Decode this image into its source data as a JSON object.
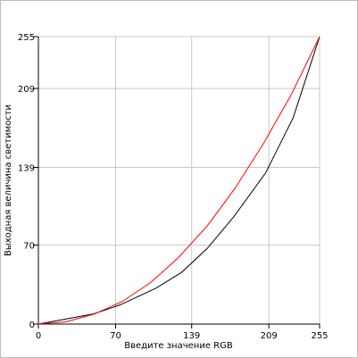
{
  "chart_data": {
    "type": "line",
    "x_label": "Введите значение RGB",
    "y_label": "Выходная величина светимости",
    "xlim": [
      0,
      255
    ],
    "ylim": [
      0,
      255
    ],
    "xticks": [
      0,
      70,
      139,
      209,
      255
    ],
    "yticks": [
      0,
      70,
      139,
      209,
      255
    ],
    "grid": true,
    "series": [
      {
        "color": "#000000",
        "x": [
          0,
          50,
          74,
          107,
          130,
          153,
          177,
          206,
          231,
          255
        ],
        "values": [
          0,
          9,
          17,
          32,
          46,
          67,
          95,
          134,
          183,
          255
        ]
      },
      {
        "color": "#ff0000",
        "x": [
          0,
          25,
          51,
          76,
          102,
          127,
          153,
          178,
          204,
          229,
          255
        ],
        "values": [
          0,
          2,
          9,
          20,
          37,
          59,
          87,
          120,
          160,
          203,
          255
        ]
      }
    ]
  }
}
